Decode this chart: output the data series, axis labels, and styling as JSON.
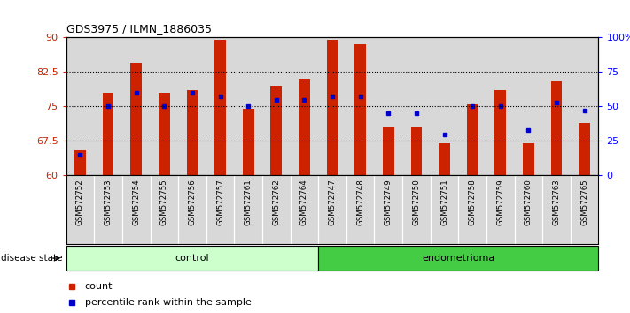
{
  "title": "GDS3975 / ILMN_1886035",
  "samples": [
    "GSM572752",
    "GSM572753",
    "GSM572754",
    "GSM572755",
    "GSM572756",
    "GSM572757",
    "GSM572761",
    "GSM572762",
    "GSM572764",
    "GSM572747",
    "GSM572748",
    "GSM572749",
    "GSM572750",
    "GSM572751",
    "GSM572758",
    "GSM572759",
    "GSM572760",
    "GSM572763",
    "GSM572765"
  ],
  "bar_values": [
    65.5,
    78.0,
    84.5,
    78.0,
    78.5,
    89.5,
    74.5,
    79.5,
    81.0,
    89.5,
    88.5,
    70.5,
    70.5,
    67.0,
    75.5,
    78.5,
    67.0,
    80.5,
    71.5
  ],
  "percentile_values": [
    15,
    50,
    60,
    50,
    60,
    57,
    50,
    55,
    55,
    57,
    57,
    45,
    45,
    30,
    50,
    50,
    33,
    53,
    47
  ],
  "bar_color": "#cc2200",
  "percentile_color": "#0000cc",
  "ymin": 60,
  "ymax": 90,
  "yticks": [
    60,
    67.5,
    75,
    82.5,
    90
  ],
  "ytick_labels": [
    "60",
    "67.5",
    "75",
    "82.5",
    "90"
  ],
  "right_yticks": [
    0,
    25,
    50,
    75,
    100
  ],
  "right_ytick_labels": [
    "0",
    "25",
    "50",
    "75",
    "100%"
  ],
  "grid_lines": [
    67.5,
    75.0,
    82.5
  ],
  "groups": [
    {
      "label": "control",
      "start": 0,
      "end": 9,
      "color": "#ccffcc"
    },
    {
      "label": "endometrioma",
      "start": 9,
      "end": 19,
      "color": "#44cc44"
    }
  ],
  "group_row_label": "disease state",
  "legend_items": [
    {
      "label": "count",
      "color": "#cc2200"
    },
    {
      "label": "percentile rank within the sample",
      "color": "#0000cc"
    }
  ],
  "col_bg_color": "#d8d8d8",
  "plot_bg_color": "#ffffff"
}
